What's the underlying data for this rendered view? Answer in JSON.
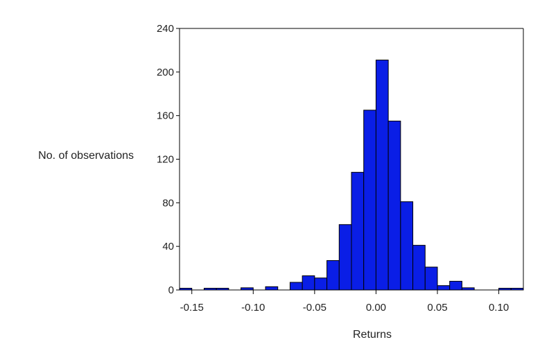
{
  "chart_data": {
    "type": "bar",
    "xlabel": "Returns",
    "ylabel": "No. of observations",
    "xlim": [
      -0.16,
      0.12
    ],
    "ylim": [
      0,
      240
    ],
    "bin_width": 0.01,
    "grid": false,
    "bar_color": "#0a1ee6",
    "x_ticks": [
      "-0.15",
      "-0.10",
      "-0.05",
      "0.00",
      "0.05",
      "0.10"
    ],
    "x_tick_values": [
      -0.15,
      -0.1,
      -0.05,
      0.0,
      0.05,
      0.1
    ],
    "y_ticks": [
      "0",
      "40",
      "80",
      "120",
      "160",
      "200",
      "240"
    ],
    "y_tick_values": [
      0,
      40,
      80,
      120,
      160,
      200,
      240
    ],
    "bins": [
      {
        "start": -0.16,
        "end": -0.15,
        "count": 1
      },
      {
        "start": -0.14,
        "end": -0.13,
        "count": 1
      },
      {
        "start": -0.13,
        "end": -0.12,
        "count": 1
      },
      {
        "start": -0.11,
        "end": -0.1,
        "count": 2
      },
      {
        "start": -0.09,
        "end": -0.08,
        "count": 3
      },
      {
        "start": -0.07,
        "end": -0.06,
        "count": 7
      },
      {
        "start": -0.06,
        "end": -0.05,
        "count": 13
      },
      {
        "start": -0.05,
        "end": -0.04,
        "count": 11
      },
      {
        "start": -0.04,
        "end": -0.03,
        "count": 27
      },
      {
        "start": -0.03,
        "end": -0.02,
        "count": 60
      },
      {
        "start": -0.02,
        "end": -0.01,
        "count": 108
      },
      {
        "start": -0.01,
        "end": 0.0,
        "count": 165
      },
      {
        "start": 0.0,
        "end": 0.01,
        "count": 211
      },
      {
        "start": 0.01,
        "end": 0.02,
        "count": 155
      },
      {
        "start": 0.02,
        "end": 0.03,
        "count": 81
      },
      {
        "start": 0.03,
        "end": 0.04,
        "count": 41
      },
      {
        "start": 0.04,
        "end": 0.05,
        "count": 21
      },
      {
        "start": 0.05,
        "end": 0.06,
        "count": 4
      },
      {
        "start": 0.06,
        "end": 0.07,
        "count": 8
      },
      {
        "start": 0.07,
        "end": 0.08,
        "count": 2
      },
      {
        "start": 0.1,
        "end": 0.11,
        "count": 1
      },
      {
        "start": 0.11,
        "end": 0.12,
        "count": 1
      }
    ]
  }
}
